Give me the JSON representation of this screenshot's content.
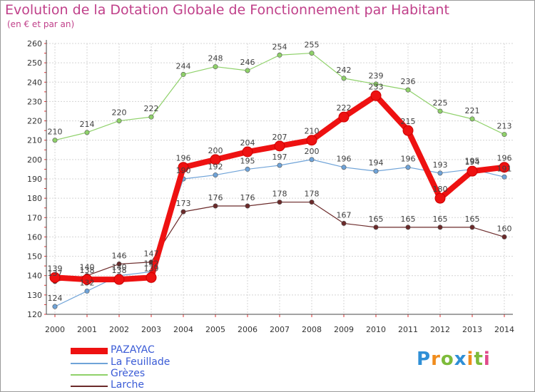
{
  "chart_data": {
    "type": "line",
    "title": "Evolution de la Dotation Globale de Fonctionnement par Habitant",
    "subtitle": "(en € et par an)",
    "xlabel": "",
    "ylabel": "",
    "x": [
      "2000",
      "2001",
      "2002",
      "2003",
      "2004",
      "2005",
      "2006",
      "2007",
      "2008",
      "2009",
      "2010",
      "2011",
      "2012",
      "2013",
      "2014"
    ],
    "ylim": [
      120,
      260
    ],
    "yticks": [
      "120",
      "130",
      "140",
      "150",
      "160",
      "170",
      "180",
      "190",
      "200",
      "210",
      "220",
      "230",
      "240",
      "250",
      "260"
    ],
    "grid": true,
    "legend_position": "bottom-left",
    "series": [
      {
        "name": "Larche",
        "color": "#6b2a2a",
        "values": [
          137,
          140,
          146,
          147,
          173,
          176,
          176,
          178,
          178,
          167,
          165,
          165,
          165,
          165,
          160
        ],
        "labels": [
          "137",
          "140",
          "146",
          "147",
          "173",
          "176",
          "176",
          "178",
          "178",
          "167",
          "165",
          "165",
          "165",
          "165",
          "160"
        ]
      },
      {
        "name": "Grèzes",
        "color": "#8fd16a",
        "values": [
          210,
          214,
          220,
          222,
          244,
          248,
          246,
          254,
          255,
          242,
          239,
          236,
          225,
          221,
          213
        ],
        "labels": [
          "210",
          "214",
          "220",
          "222",
          "244",
          "248",
          "246",
          "254",
          "255",
          "242",
          "239",
          "236",
          "225",
          "221",
          "213"
        ]
      },
      {
        "name": "La Feuillade",
        "color": "#6fa3d8",
        "values": [
          124,
          132,
          140,
          142,
          190,
          192,
          195,
          197,
          200,
          196,
          194,
          196,
          193,
          195,
          191
        ],
        "labels": [
          "124",
          "132",
          "140",
          "142",
          "190",
          "192",
          "195",
          "197",
          "200",
          "196",
          "194",
          "196",
          "193",
          "195",
          "191"
        ]
      },
      {
        "name": "PAZAYAC",
        "color": "#ee1111",
        "values": [
          139,
          138,
          138,
          139,
          196,
          200,
          204,
          207,
          210,
          222,
          233,
          215,
          180,
          194,
          196
        ],
        "labels": [
          "139",
          "138",
          "138",
          "139",
          "196",
          "200",
          "204",
          "207",
          "210",
          "222",
          "233",
          "215",
          "180",
          "194",
          "196"
        ]
      }
    ],
    "legend_entries": [
      "PAZAYAC",
      "La Feuillade",
      "Grèzes",
      "Larche"
    ],
    "legend_colors": [
      "#ee1111",
      "#6fa3d8",
      "#8fd16a",
      "#6b2a2a"
    ]
  },
  "logo": {
    "text": "Proxiti",
    "letters": [
      "P",
      "r",
      "o",
      "x",
      "i",
      "t",
      "i"
    ],
    "colors": [
      "#2f8fd6",
      "#f08c1c",
      "#7dbb3a",
      "#2f8fd6",
      "#f08c1c",
      "#7dbb3a",
      "#e04a8a"
    ]
  }
}
